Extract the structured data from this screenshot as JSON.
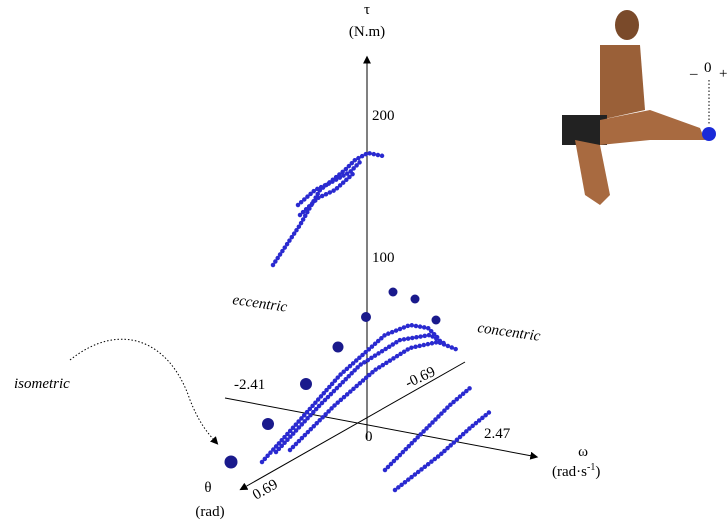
{
  "axes": {
    "tau": {
      "symbol": "τ",
      "unit": "(N.m)",
      "ticks": [
        "200",
        "100",
        "0"
      ]
    },
    "omega": {
      "symbol": "ω",
      "unit": "(rad·s",
      "unit_sup": "-1",
      "unit_end": ")",
      "ticks": [
        "-2.41",
        "2.47"
      ]
    },
    "theta": {
      "symbol": "θ",
      "unit": "(rad)",
      "ticks": [
        "0.69",
        "-0.69"
      ]
    }
  },
  "annotations": {
    "eccentric": "eccentric",
    "concentric": "concentric",
    "isometric": "isometric"
  },
  "inset": {
    "minus": "–",
    "zero": "0",
    "plus": "+"
  }
}
